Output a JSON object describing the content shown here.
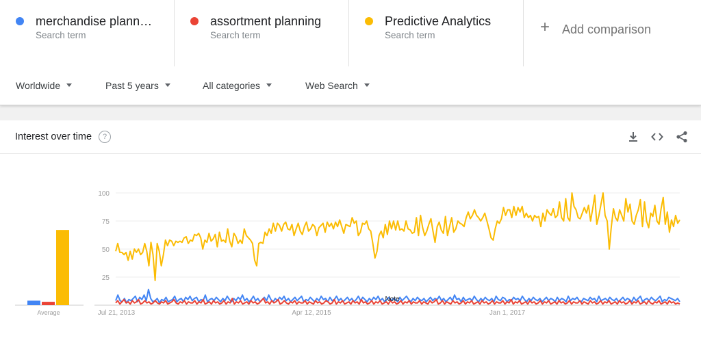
{
  "terms": [
    {
      "name": "merchandise plann…",
      "sub": "Search term",
      "color": "#4285f4"
    },
    {
      "name": "assortment planning",
      "sub": "Search term",
      "color": "#ea4335"
    },
    {
      "name": "Predictive Analytics",
      "sub": "Search term",
      "color": "#fbbc04"
    }
  ],
  "add_comparison": {
    "icon": "plus-icon",
    "label": "Add comparison"
  },
  "filters": {
    "region": "Worldwide",
    "time": "Past 5 years",
    "category": "All categories",
    "search_type": "Web Search"
  },
  "card": {
    "title": "Interest over time",
    "help_icon": "?",
    "tools": [
      "download-icon",
      "embed-code-icon",
      "share-icon"
    ]
  },
  "chart_data": {
    "type": "line",
    "y_ticks": [
      25,
      50,
      75,
      100
    ],
    "ylim": [
      0,
      100
    ],
    "x_ticks": [
      "Jul 21, 2013",
      "Apr 12, 2015",
      "Jan 1, 2017"
    ],
    "annotation": "Note",
    "average_label": "Average",
    "averages": [
      {
        "name": "merchandise plann…",
        "value": 4,
        "color": "#4285f4"
      },
      {
        "name": "assortment planning",
        "value": 3,
        "color": "#ea4335"
      },
      {
        "name": "Predictive Analytics",
        "value": 67,
        "color": "#fbbc04"
      }
    ],
    "series": [
      {
        "name": "Predictive Analytics",
        "color": "#fbbc04",
        "values": [
          48,
          55,
          47,
          47,
          45,
          47,
          40,
          48,
          41,
          50,
          47,
          50,
          45,
          47,
          55,
          48,
          35,
          56,
          45,
          22,
          55,
          48,
          35,
          45,
          58,
          53,
          58,
          57,
          53,
          57,
          56,
          57,
          56,
          60,
          61,
          55,
          58,
          57,
          63,
          62,
          64,
          60,
          50,
          58,
          56,
          64,
          57,
          59,
          63,
          52,
          65,
          57,
          58,
          56,
          68,
          57,
          52,
          64,
          61,
          55,
          58,
          55,
          68,
          62,
          60,
          58,
          55,
          40,
          35,
          55,
          56,
          55,
          65,
          62,
          68,
          64,
          73,
          66,
          73,
          71,
          66,
          72,
          74,
          68,
          67,
          72,
          62,
          68,
          73,
          66,
          63,
          70,
          74,
          66,
          68,
          72,
          70,
          62,
          69,
          71,
          73,
          65,
          74,
          70,
          73,
          68,
          74,
          70,
          76,
          70,
          64,
          72,
          71,
          70,
          78,
          73,
          75,
          62,
          65,
          73,
          72,
          75,
          68,
          66,
          55,
          42,
          48,
          62,
          66,
          60,
          72,
          63,
          75,
          68,
          75,
          67,
          75,
          67,
          68,
          66,
          75,
          68,
          67,
          64,
          65,
          78,
          62,
          80,
          69,
          62,
          66,
          72,
          77,
          66,
          56,
          70,
          74,
          67,
          64,
          79,
          62,
          70,
          78,
          65,
          68,
          75,
          73,
          72,
          70,
          78,
          83,
          77,
          80,
          85,
          80,
          78,
          75,
          78,
          82,
          75,
          68,
          60,
          58,
          68,
          75,
          73,
          77,
          87,
          80,
          85,
          85,
          78,
          88,
          80,
          87,
          83,
          88,
          78,
          82,
          78,
          80,
          75,
          80,
          78,
          79,
          70,
          82,
          75,
          85,
          82,
          80,
          86,
          78,
          80,
          92,
          78,
          75,
          95,
          78,
          75,
          100,
          88,
          85,
          78,
          77,
          82,
          87,
          82,
          89,
          75,
          86,
          98,
          72,
          80,
          90,
          100,
          80,
          75,
          50,
          70,
          86,
          78,
          75,
          85,
          80,
          75,
          95,
          83,
          90,
          75,
          72,
          80,
          85,
          94,
          70,
          92,
          75,
          69,
          82,
          79,
          89,
          75,
          72,
          86,
          96,
          72,
          83,
          65,
          76,
          70,
          80,
          73,
          76
        ]
      },
      {
        "name": "merchandise plann…",
        "color": "#4285f4",
        "values": [
          4,
          9,
          4,
          3,
          6,
          2,
          5,
          4,
          6,
          8,
          3,
          7,
          5,
          9,
          4,
          14,
          6,
          3,
          4,
          6,
          2,
          5,
          4,
          7,
          3,
          4,
          5,
          8,
          3,
          5,
          6,
          3,
          7,
          5,
          8,
          4,
          6,
          7,
          3,
          5,
          4,
          9,
          3,
          5,
          6,
          4,
          7,
          5,
          3,
          6,
          4,
          8,
          5,
          3,
          6,
          4,
          7,
          5,
          9,
          4,
          6,
          3,
          5,
          8,
          4,
          6,
          3,
          5,
          7,
          4,
          9,
          5,
          3,
          6,
          4,
          7,
          5,
          8,
          4,
          6,
          3,
          5,
          7,
          4,
          6,
          8,
          3,
          5,
          4,
          7,
          5,
          3,
          6,
          4,
          8,
          5,
          6,
          3,
          7,
          4,
          5,
          8,
          4,
          6,
          3,
          5,
          7,
          4,
          6,
          3,
          5,
          8,
          4,
          7,
          5,
          3,
          6,
          4,
          7,
          5,
          8,
          4,
          6,
          3,
          5,
          7,
          4,
          6,
          5,
          3,
          7,
          4,
          6,
          8,
          5,
          3,
          6,
          4,
          7,
          5,
          4,
          6,
          3,
          5,
          7,
          4,
          6,
          5,
          8,
          4,
          6,
          3,
          5,
          7,
          4,
          9,
          5,
          6,
          3,
          7,
          4,
          5,
          6,
          4,
          8,
          5,
          3,
          6,
          4,
          7,
          5,
          4,
          6,
          3,
          8,
          5,
          4,
          7,
          6,
          3,
          5,
          4,
          7,
          5,
          6,
          4,
          8,
          5,
          3,
          6,
          4,
          7,
          5,
          4,
          6,
          3,
          5,
          7,
          4,
          6,
          5,
          3,
          7,
          4,
          6,
          5,
          3,
          8,
          4,
          6,
          5,
          7,
          4,
          3,
          6,
          5,
          4,
          7,
          5,
          6,
          3,
          8,
          4,
          5,
          6,
          4,
          7,
          5,
          4,
          6,
          3,
          5,
          7,
          4,
          6,
          5,
          3,
          7,
          4,
          6,
          8,
          3,
          5,
          6,
          4,
          7,
          5,
          4,
          6,
          8,
          3,
          5,
          4,
          7,
          6,
          5,
          4,
          6,
          3
        ]
      },
      {
        "name": "assortment planning",
        "color": "#ea4335",
        "values": [
          2,
          4,
          1,
          3,
          5,
          2,
          3,
          1,
          4,
          2,
          3,
          5,
          1,
          2,
          4,
          2,
          3,
          1,
          2,
          4,
          2,
          1,
          3,
          2,
          4,
          1,
          2,
          3,
          5,
          2,
          1,
          3,
          2,
          4,
          1,
          3,
          2,
          2,
          4,
          1,
          3,
          2,
          5,
          1,
          2,
          3,
          1,
          4,
          2,
          3,
          1,
          2,
          4,
          1,
          3,
          2,
          6,
          1,
          3,
          2,
          4,
          1,
          2,
          3,
          1,
          4,
          2,
          3,
          1,
          2,
          4,
          6,
          2,
          3,
          1,
          4,
          2,
          3,
          5,
          1,
          2,
          4,
          2,
          1,
          3,
          2,
          4,
          1,
          3,
          2,
          2,
          4,
          1,
          3,
          2,
          1,
          4,
          2,
          3,
          1,
          2,
          4,
          3,
          1,
          2,
          5,
          1,
          3,
          2,
          4,
          1,
          2,
          3,
          1,
          4,
          2,
          3,
          1,
          5,
          2,
          3,
          1,
          2,
          4,
          1,
          3,
          2,
          4,
          1,
          2,
          3,
          1,
          4,
          2,
          3,
          1,
          2,
          4,
          1,
          3,
          2,
          4,
          1,
          3,
          2,
          2,
          4,
          1,
          3,
          2,
          1,
          4,
          2,
          3,
          5,
          1,
          2,
          4,
          1,
          3,
          2,
          1,
          4,
          2,
          3,
          1,
          2,
          4,
          1,
          3,
          2,
          4,
          1,
          2,
          3,
          1,
          4,
          2,
          3,
          1,
          2,
          4,
          1,
          3,
          2,
          2,
          4,
          1,
          3,
          2,
          5,
          1,
          3,
          2,
          4,
          1,
          2,
          3,
          1,
          4,
          2,
          3,
          1,
          2,
          4,
          1,
          3,
          2,
          4,
          1,
          2,
          3,
          1,
          4,
          2,
          3,
          1,
          2,
          4,
          1,
          3,
          2,
          2,
          4,
          1,
          3,
          2,
          1,
          4,
          2,
          3,
          1,
          2,
          4,
          1,
          3,
          2,
          4,
          1,
          2,
          3,
          1,
          4,
          2,
          3,
          1,
          2,
          4,
          1,
          3,
          2,
          4,
          1,
          2,
          3,
          1,
          4,
          2,
          1,
          3,
          2,
          4,
          1,
          2,
          3,
          1,
          4,
          2,
          3,
          1,
          2,
          1
        ]
      }
    ]
  }
}
